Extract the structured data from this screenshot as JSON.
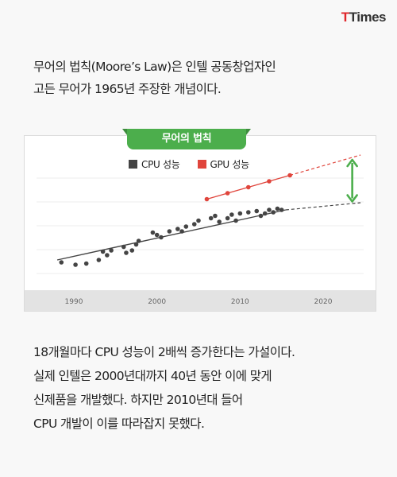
{
  "logo": {
    "part1": "T",
    "part2": "Times"
  },
  "intro": [
    "무어의 법칙(Moore’s Law)은 인텔 공동창업자인",
    "고든 무어가 1965년 주장한 개념이다."
  ],
  "chart_data": {
    "type": "scatter",
    "title": "무어의 법칙",
    "xlabel": "",
    "ylabel": "",
    "xlim": [
      1985,
      2025
    ],
    "ylim": [
      0,
      10
    ],
    "x_ticks": [
      "1990",
      "2000",
      "2010",
      "2020"
    ],
    "legend_position": "top",
    "colors": {
      "cpu": "#444444",
      "gpu": "#e0453c",
      "arrow": "#4cae4c",
      "title_bg": "#4cae4c"
    },
    "series": [
      {
        "name": "CPU 성능",
        "points": [
          [
            1988.5,
            1.0
          ],
          [
            1990.2,
            0.8
          ],
          [
            1991.5,
            0.9
          ],
          [
            1993.0,
            1.2
          ],
          [
            1993.5,
            1.9
          ],
          [
            1994.0,
            1.6
          ],
          [
            1994.5,
            2.0
          ],
          [
            1996.0,
            2.3
          ],
          [
            1996.3,
            1.8
          ],
          [
            1997.0,
            2.0
          ],
          [
            1997.5,
            2.5
          ],
          [
            1997.8,
            2.8
          ],
          [
            1999.5,
            3.5
          ],
          [
            2000.0,
            3.3
          ],
          [
            2000.5,
            3.1
          ],
          [
            2001.5,
            3.6
          ],
          [
            2002.5,
            3.8
          ],
          [
            2003.0,
            3.6
          ],
          [
            2003.5,
            4.0
          ],
          [
            2004.5,
            4.2
          ],
          [
            2005.0,
            4.5
          ],
          [
            2006.5,
            4.7
          ],
          [
            2007.0,
            4.9
          ],
          [
            2007.5,
            4.4
          ],
          [
            2008.5,
            4.7
          ],
          [
            2009.0,
            5.0
          ],
          [
            2009.5,
            4.5
          ],
          [
            2010.0,
            5.1
          ],
          [
            2011.0,
            5.2
          ],
          [
            2012.0,
            5.3
          ],
          [
            2012.5,
            4.9
          ],
          [
            2013.0,
            5.1
          ],
          [
            2013.5,
            5.4
          ],
          [
            2014.0,
            5.2
          ],
          [
            2014.5,
            5.5
          ],
          [
            2015.0,
            5.4
          ]
        ],
        "trend": [
          [
            1988,
            1.2
          ],
          [
            2015.5,
            5.4
          ]
        ],
        "projection": [
          [
            2015.5,
            5.4
          ],
          [
            2024.5,
            6.0
          ]
        ]
      },
      {
        "name": "GPU 성능",
        "points": [
          [
            2006,
            6.3
          ],
          [
            2008.5,
            6.8
          ],
          [
            2011,
            7.3
          ],
          [
            2013.5,
            7.8
          ],
          [
            2016,
            8.3
          ]
        ],
        "projection": [
          [
            2016,
            8.3
          ],
          [
            2024.5,
            10.0
          ]
        ]
      }
    ],
    "annotation": {
      "type": "double-arrow",
      "x": 2023.5,
      "from": 9.6,
      "to": 6.1
    }
  },
  "body": [
    "18개월마다 CPU 성능이 2배씩 증가한다는 가설이다.",
    "실제 인텔은 2000년대까지 40년 동안 이에 맞게",
    "신제품을 개발했다. 하지만 2010년대 들어",
    "CPU 개발이 이를 따라잡지 못했다."
  ]
}
